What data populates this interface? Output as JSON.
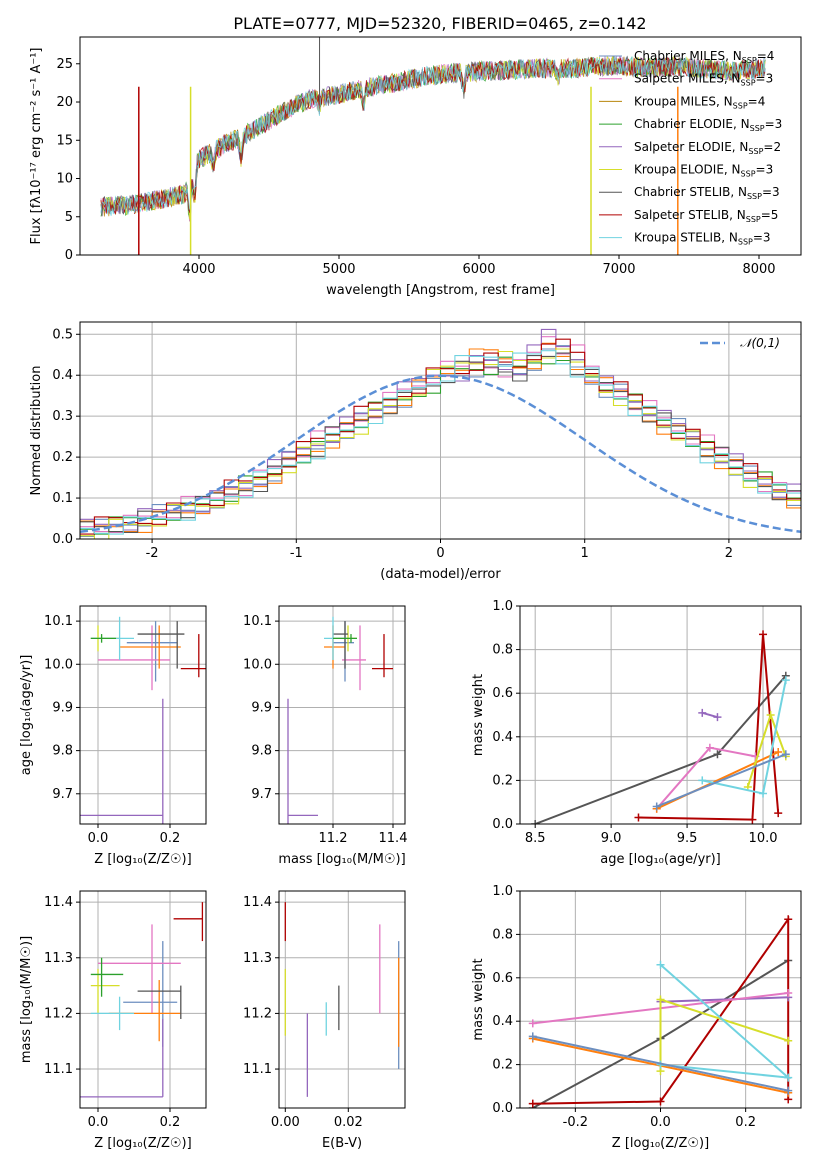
{
  "figure_title": "PLATE=0777, MJD=52320, FIBERID=0465, z=0.142",
  "colors": [
    "#6c8ebf",
    "#e377c2",
    "#ff7f0e",
    "#2ca02c",
    "#9467bd",
    "#d6de2a",
    "#555555",
    "#b00000",
    "#70d3e0"
  ],
  "chart_data": [
    {
      "id": "spectrum",
      "type": "line",
      "xlabel": "wavelength [Angstrom, rest frame]",
      "ylabel": "Flux [fλ10⁻¹⁷ erg cm⁻² s⁻¹ A⁻¹]",
      "xlim": [
        3150,
        8300
      ],
      "ylim": [
        0,
        28.5
      ],
      "xticks": [
        4000,
        5000,
        6000,
        7000,
        8000
      ],
      "yticks": [
        0,
        5,
        10,
        15,
        20,
        25
      ],
      "grid": false,
      "legend_placement": "top-right",
      "continuum": {
        "x": [
          3300,
          3500,
          3700,
          3900,
          4000,
          4100,
          4200,
          4300,
          4400,
          4600,
          4800,
          5000,
          5200,
          5400,
          5600,
          5800,
          6000,
          6200,
          6400,
          6600,
          6800,
          7000,
          7200,
          7400,
          7600,
          7800,
          8050
        ],
        "y": [
          6.3,
          6.5,
          7.2,
          8.0,
          12.5,
          13.5,
          14.7,
          15.3,
          16.5,
          18.7,
          20.5,
          21.0,
          21.9,
          22.5,
          23.3,
          23.8,
          24.0,
          24.2,
          24.4,
          24.3,
          24.6,
          24.8,
          24.5,
          24.6,
          24.4,
          24.0,
          24.5
        ]
      },
      "series": [
        {
          "name": "Chabrier MILES, N_SSP=4",
          "color": "#6c8ebf"
        },
        {
          "name": "Salpeter MILES, N_SSP=3",
          "color": "#e377c2"
        },
        {
          "name": "Kroupa MILES, N_SSP=4",
          "color": "#b8860b"
        },
        {
          "name": "Chabrier ELODIE, N_SSP=3",
          "color": "#2ca02c"
        },
        {
          "name": "Salpeter ELODIE, N_SSP=2",
          "color": "#9467bd"
        },
        {
          "name": "Kroupa ELODIE, N_SSP=3",
          "color": "#d6de2a"
        },
        {
          "name": "Chabrier STELIB, N_SSP=3",
          "color": "#555555"
        },
        {
          "name": "Salpeter STELIB, N_SSP=5",
          "color": "#b00000"
        },
        {
          "name": "Kroupa STELIB, N_SSP=3",
          "color": "#70d3e0"
        }
      ]
    },
    {
      "id": "residuals",
      "type": "bar",
      "xlabel": "(data-model)/error",
      "ylabel": "Normed distribution",
      "xlim": [
        -2.5,
        2.5
      ],
      "ylim": [
        0,
        0.53
      ],
      "xticks": [
        -2,
        -1,
        0,
        1,
        2
      ],
      "yticks": [
        0.0,
        0.1,
        0.2,
        0.3,
        0.4,
        0.5
      ],
      "grid": true,
      "legend": "𝒩(0,1)",
      "legend_placement": "top-right",
      "bin_width": 0.1,
      "bin_start": -2.5,
      "histograms": [
        [
          0.03,
          0.03,
          0.03,
          0.04,
          0.05,
          0.06,
          0.07,
          0.07,
          0.08,
          0.1,
          0.11,
          0.13,
          0.14,
          0.16,
          0.19,
          0.21,
          0.22,
          0.25,
          0.27,
          0.29,
          0.31,
          0.33,
          0.34,
          0.36,
          0.38,
          0.4,
          0.41,
          0.42,
          0.42,
          0.42,
          0.41,
          0.43,
          0.44,
          0.46,
          0.42,
          0.39,
          0.37,
          0.36,
          0.33,
          0.31,
          0.29,
          0.27,
          0.25,
          0.22,
          0.2,
          0.18,
          0.16,
          0.14,
          0.12,
          0.1
        ],
        [
          0.03,
          0.03,
          0.04,
          0.04,
          0.05,
          0.06,
          0.07,
          0.08,
          0.09,
          0.1,
          0.12,
          0.13,
          0.15,
          0.17,
          0.2,
          0.22,
          0.24,
          0.26,
          0.28,
          0.3,
          0.32,
          0.34,
          0.36,
          0.38,
          0.4,
          0.41,
          0.41,
          0.43,
          0.43,
          0.42,
          0.42,
          0.45,
          0.5,
          0.47,
          0.45,
          0.41,
          0.38,
          0.36,
          0.34,
          0.32,
          0.29,
          0.27,
          0.25,
          0.23,
          0.21,
          0.19,
          0.16,
          0.14,
          0.12,
          0.11
        ],
        [
          0.02,
          0.02,
          0.03,
          0.03,
          0.04,
          0.05,
          0.06,
          0.07,
          0.08,
          0.09,
          0.11,
          0.12,
          0.14,
          0.16,
          0.18,
          0.2,
          0.22,
          0.24,
          0.26,
          0.28,
          0.3,
          0.32,
          0.35,
          0.37,
          0.39,
          0.41,
          0.43,
          0.44,
          0.45,
          0.44,
          0.43,
          0.44,
          0.46,
          0.44,
          0.42,
          0.4,
          0.37,
          0.35,
          0.32,
          0.3,
          0.28,
          0.26,
          0.24,
          0.21,
          0.19,
          0.17,
          0.15,
          0.13,
          0.11,
          0.1
        ]
      ],
      "normal": {
        "mu": 0,
        "sigma": 1
      }
    },
    {
      "id": "age-vs-Z",
      "type": "scatter",
      "xlabel": "Z [log₁₀(Z/Z☉)]",
      "ylabel": "age  [log₁₀(age/yr)]",
      "xlim": [
        -0.05,
        0.3
      ],
      "ylim": [
        9.63,
        10.135
      ],
      "xticks": [
        0.0,
        0.2
      ],
      "yticks": [
        9.7,
        9.8,
        9.9,
        10.0,
        10.1
      ]
    },
    {
      "id": "age-vs-mass",
      "type": "scatter",
      "xlabel": "mass [log₁₀(M/M☉)]",
      "ylabel": "",
      "xlim": [
        11.02,
        11.44
      ],
      "ylim": [
        9.63,
        10.135
      ],
      "xticks": [
        11.2,
        11.4
      ],
      "yticks": [
        9.7,
        9.8,
        9.9,
        10.0,
        10.1
      ]
    },
    {
      "id": "weight-vs-age",
      "type": "line",
      "xlabel": "age  [log₁₀(age/yr)]",
      "ylabel": "mass weight",
      "xlim": [
        8.4,
        10.25
      ],
      "ylim": [
        0,
        1.0
      ],
      "xticks": [
        8.5,
        9.0,
        9.5,
        10.0
      ],
      "yticks": [
        0.0,
        0.2,
        0.4,
        0.6,
        0.8,
        1.0
      ]
    },
    {
      "id": "mass-vs-Z",
      "type": "scatter",
      "xlabel": "Z [log₁₀(Z/Z☉)]",
      "ylabel": "mass [log₁₀(M/M☉)]",
      "xlim": [
        -0.05,
        0.3
      ],
      "ylim": [
        11.03,
        11.42
      ],
      "xticks": [
        0.0,
        0.2
      ],
      "yticks": [
        11.1,
        11.2,
        11.3,
        11.4
      ]
    },
    {
      "id": "mass-vs-ebv",
      "type": "scatter",
      "xlabel": "E(B-V)",
      "ylabel": "",
      "xlim": [
        -0.002,
        0.038
      ],
      "ylim": [
        11.03,
        11.42
      ],
      "xticks": [
        0.0,
        0.02
      ],
      "yticks": [
        11.1,
        11.2,
        11.3,
        11.4
      ]
    },
    {
      "id": "weight-vs-Z",
      "type": "line",
      "xlabel": "Z [log₁₀(Z/Z☉)]",
      "ylabel": "mass weight",
      "xlim": [
        -0.33,
        0.33
      ],
      "ylim": [
        0,
        1.0
      ],
      "xticks": [
        -0.2,
        0.0,
        0.2
      ],
      "yticks": [
        0.0,
        0.2,
        0.4,
        0.6,
        0.8,
        1.0
      ]
    }
  ],
  "errorbars": {
    "age_Z": [
      {
        "c": "#6c8ebf",
        "x": 0.16,
        "xe": [
          0.08,
          0.22
        ],
        "y": 10.05,
        "ye": [
          9.96,
          10.1
        ]
      },
      {
        "c": "#e377c2",
        "x": 0.15,
        "xe": [
          0.0,
          0.2
        ],
        "y": 10.01,
        "ye": [
          9.94,
          10.09
        ]
      },
      {
        "c": "#ff7f0e",
        "x": 0.17,
        "xe": [
          0.06,
          0.23
        ],
        "y": 10.04,
        "ye": [
          9.99,
          10.09
        ]
      },
      {
        "c": "#9467bd",
        "x": 0.18,
        "xe": [
          -0.3,
          0.18
        ],
        "y": 9.65,
        "ye": [
          9.3,
          9.92
        ]
      },
      {
        "c": "#d6de2a",
        "x": 0.0,
        "xe": [
          -0.02,
          0.06
        ],
        "y": 10.06,
        "ye": [
          10.03,
          10.09
        ]
      },
      {
        "c": "#555555",
        "x": 0.22,
        "xe": [
          0.11,
          0.24
        ],
        "y": 10.07,
        "ye": [
          9.99,
          10.1
        ]
      },
      {
        "c": "#b00000",
        "x": 0.28,
        "xe": [
          0.23,
          0.3
        ],
        "y": 9.99,
        "ye": [
          9.97,
          10.07
        ]
      },
      {
        "c": "#70d3e0",
        "x": 0.06,
        "xe": [
          -0.02,
          0.1
        ],
        "y": 10.06,
        "ye": [
          10.01,
          10.11
        ]
      },
      {
        "c": "#2ca02c",
        "x": 0.01,
        "xe": [
          -0.02,
          0.05
        ],
        "y": 10.06,
        "ye": [
          10.05,
          10.07
        ]
      }
    ],
    "age_mass": [
      {
        "c": "#6c8ebf",
        "x": 11.24,
        "xe": [
          11.2,
          11.27
        ],
        "y": 10.05,
        "ye": [
          9.96,
          10.1
        ]
      },
      {
        "c": "#e377c2",
        "x": 11.29,
        "xe": [
          11.23,
          11.31
        ],
        "y": 10.01,
        "ye": [
          9.94,
          10.09
        ]
      },
      {
        "c": "#ff7f0e",
        "x": 11.2,
        "xe": [
          11.17,
          11.24
        ],
        "y": 10.04,
        "ye": [
          9.99,
          10.09
        ]
      },
      {
        "c": "#9467bd",
        "x": 11.05,
        "xe": [
          11.05,
          11.15
        ],
        "y": 9.65,
        "ye": [
          9.3,
          9.92
        ]
      },
      {
        "c": "#d6de2a",
        "x": 11.25,
        "xe": [
          11.2,
          11.28
        ],
        "y": 10.06,
        "ye": [
          10.03,
          10.09
        ]
      },
      {
        "c": "#555555",
        "x": 11.24,
        "xe": [
          11.2,
          11.25
        ],
        "y": 10.07,
        "ye": [
          9.99,
          10.1
        ]
      },
      {
        "c": "#b00000",
        "x": 11.37,
        "xe": [
          11.33,
          11.4
        ],
        "y": 9.99,
        "ye": [
          9.97,
          10.07
        ]
      },
      {
        "c": "#70d3e0",
        "x": 11.2,
        "xe": [
          11.17,
          11.25
        ],
        "y": 10.06,
        "ye": [
          10.01,
          10.11
        ]
      },
      {
        "c": "#2ca02c",
        "x": 11.26,
        "xe": [
          11.2,
          11.28
        ],
        "y": 10.06,
        "ye": [
          10.05,
          10.07
        ]
      }
    ],
    "mass_Z": [
      {
        "c": "#6c8ebf",
        "x": 0.18,
        "xe": [
          0.07,
          0.22
        ],
        "y": 11.22,
        "ye": [
          11.14,
          11.33
        ]
      },
      {
        "c": "#e377c2",
        "x": 0.15,
        "xe": [
          0.0,
          0.23
        ],
        "y": 11.29,
        "ye": [
          11.2,
          11.36
        ]
      },
      {
        "c": "#ff7f0e",
        "x": 0.17,
        "xe": [
          0.03,
          0.23
        ],
        "y": 11.2,
        "ye": [
          11.15,
          11.26
        ]
      },
      {
        "c": "#9467bd",
        "x": 0.18,
        "xe": [
          -0.3,
          0.18
        ],
        "y": 11.05,
        "ye": [
          11.05,
          11.19
        ]
      },
      {
        "c": "#d6de2a",
        "x": 0.0,
        "xe": [
          -0.02,
          0.06
        ],
        "y": 11.25,
        "ye": [
          11.2,
          11.28
        ]
      },
      {
        "c": "#555555",
        "x": 0.23,
        "xe": [
          0.11,
          0.23
        ],
        "y": 11.24,
        "ye": [
          11.19,
          11.25
        ]
      },
      {
        "c": "#b00000",
        "x": 0.29,
        "xe": [
          0.21,
          0.29
        ],
        "y": 11.37,
        "ye": [
          11.33,
          11.4
        ]
      },
      {
        "c": "#70d3e0",
        "x": 0.06,
        "xe": [
          -0.02,
          0.1
        ],
        "y": 11.2,
        "ye": [
          11.17,
          11.23
        ]
      },
      {
        "c": "#2ca02c",
        "x": 0.01,
        "xe": [
          -0.02,
          0.07
        ],
        "y": 11.27,
        "ye": [
          11.23,
          11.3
        ]
      }
    ],
    "mass_ebv": [
      {
        "c": "#6c8ebf",
        "x": 0.036,
        "ye": [
          11.1,
          11.33
        ]
      },
      {
        "c": "#e377c2",
        "x": 0.03,
        "ye": [
          11.2,
          11.36
        ]
      },
      {
        "c": "#ff7f0e",
        "x": 0.036,
        "ye": [
          11.14,
          11.3
        ]
      },
      {
        "c": "#9467bd",
        "x": 0.007,
        "ye": [
          11.05,
          11.2
        ]
      },
      {
        "c": "#d6de2a",
        "x": 0.0,
        "ye": [
          11.16,
          11.28
        ]
      },
      {
        "c": "#555555",
        "x": 0.017,
        "ye": [
          11.17,
          11.25
        ]
      },
      {
        "c": "#b00000",
        "x": 0.0,
        "ye": [
          11.33,
          11.4
        ]
      },
      {
        "c": "#70d3e0",
        "x": 0.013,
        "ye": [
          11.16,
          11.22
        ]
      }
    ]
  },
  "weight_lines": {
    "age": [
      {
        "c": "#555555",
        "pts": [
          [
            8.5,
            0.0
          ],
          [
            9.7,
            0.32
          ],
          [
            10.15,
            0.68
          ]
        ]
      },
      {
        "c": "#b00000",
        "pts": [
          [
            9.18,
            0.03
          ],
          [
            9.93,
            0.02
          ],
          [
            10.0,
            0.87
          ],
          [
            10.1,
            0.05
          ]
        ]
      },
      {
        "c": "#9467bd",
        "pts": [
          [
            9.6,
            0.51
          ],
          [
            9.7,
            0.49
          ]
        ]
      },
      {
        "c": "#e377c2",
        "pts": [
          [
            9.3,
            0.07
          ],
          [
            9.65,
            0.35
          ],
          [
            9.95,
            0.31
          ]
        ]
      },
      {
        "c": "#ff7f0e",
        "pts": [
          [
            9.3,
            0.07
          ],
          [
            10.1,
            0.33
          ]
        ]
      },
      {
        "c": "#d6de2a",
        "pts": [
          [
            9.9,
            0.17
          ],
          [
            10.05,
            0.5
          ],
          [
            10.15,
            0.31
          ]
        ]
      },
      {
        "c": "#70d3e0",
        "pts": [
          [
            9.6,
            0.2
          ],
          [
            10.0,
            0.14
          ],
          [
            10.15,
            0.66
          ]
        ]
      },
      {
        "c": "#6c8ebf",
        "pts": [
          [
            9.3,
            0.08
          ],
          [
            10.15,
            0.32
          ]
        ]
      }
    ],
    "Z": [
      {
        "c": "#555555",
        "pts": [
          [
            -0.3,
            0.0
          ],
          [
            0.0,
            0.32
          ],
          [
            0.3,
            0.68
          ]
        ]
      },
      {
        "c": "#b00000",
        "pts": [
          [
            -0.3,
            0.02
          ],
          [
            0.0,
            0.03
          ],
          [
            0.3,
            0.87
          ],
          [
            0.3,
            0.04
          ]
        ]
      },
      {
        "c": "#9467bd",
        "pts": [
          [
            0.0,
            0.49
          ],
          [
            0.3,
            0.51
          ]
        ]
      },
      {
        "c": "#e377c2",
        "pts": [
          [
            -0.3,
            0.39
          ],
          [
            0.3,
            0.53
          ]
        ]
      },
      {
        "c": "#ff7f0e",
        "pts": [
          [
            -0.3,
            0.32
          ],
          [
            0.3,
            0.07
          ]
        ]
      },
      {
        "c": "#d6de2a",
        "pts": [
          [
            0.0,
            0.17
          ],
          [
            0.0,
            0.5
          ],
          [
            0.3,
            0.31
          ]
        ]
      },
      {
        "c": "#70d3e0",
        "pts": [
          [
            0.0,
            0.66
          ],
          [
            0.3,
            0.14
          ],
          [
            0.0,
            0.2
          ]
        ]
      },
      {
        "c": "#6c8ebf",
        "pts": [
          [
            -0.3,
            0.33
          ],
          [
            0.3,
            0.08
          ]
        ]
      }
    ]
  }
}
